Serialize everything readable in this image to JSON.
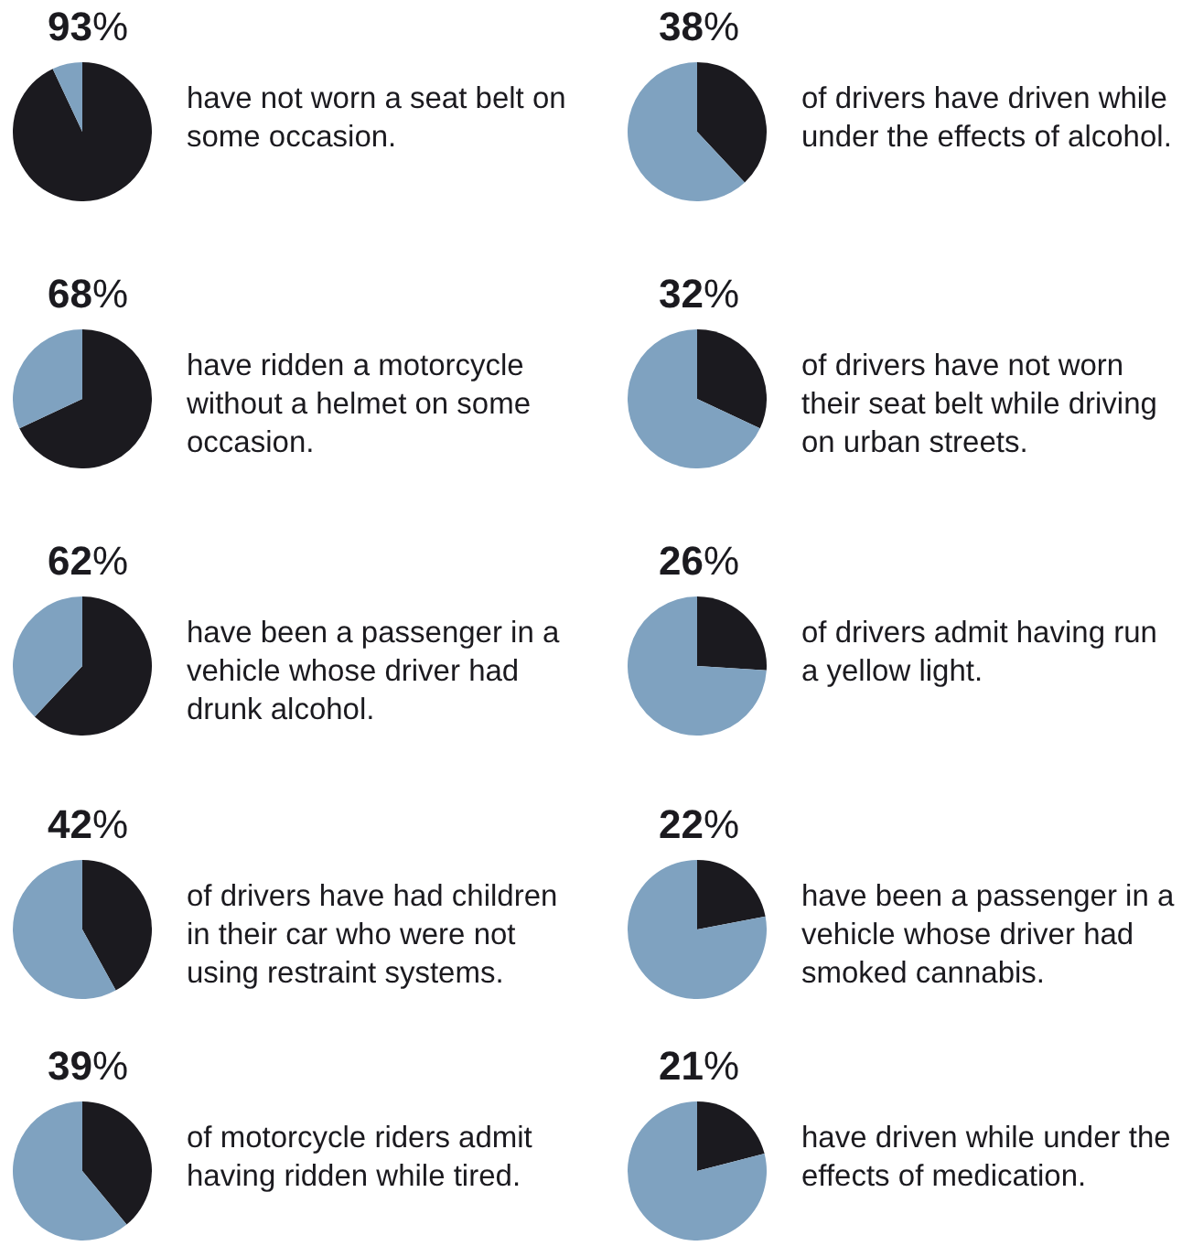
{
  "chart_data": [
    {
      "type": "pie",
      "title": "93%",
      "categories": [
        null,
        null
      ],
      "values": [
        93,
        7
      ],
      "colors": [
        "#1b1a1f",
        "#7fa2c0"
      ],
      "annotations": [
        "have not worn a seat belt on some occasion."
      ]
    },
    {
      "type": "pie",
      "title": "38%",
      "categories": [
        null,
        null
      ],
      "values": [
        38,
        62
      ],
      "colors": [
        "#1b1a1f",
        "#7fa2c0"
      ],
      "annotations": [
        "of drivers have driven while under the effects of alcohol."
      ]
    },
    {
      "type": "pie",
      "title": "68%",
      "categories": [
        null,
        null
      ],
      "values": [
        68,
        32
      ],
      "colors": [
        "#1b1a1f",
        "#7fa2c0"
      ],
      "annotations": [
        "have ridden a motorcycle without a helmet on some occasion."
      ]
    },
    {
      "type": "pie",
      "title": "32%",
      "categories": [
        null,
        null
      ],
      "values": [
        32,
        68
      ],
      "colors": [
        "#1b1a1f",
        "#7fa2c0"
      ],
      "annotations": [
        "of drivers have not worn their seat belt while driving on urban streets."
      ]
    },
    {
      "type": "pie",
      "title": "62%",
      "categories": [
        null,
        null
      ],
      "values": [
        62,
        38
      ],
      "colors": [
        "#1b1a1f",
        "#7fa2c0"
      ],
      "annotations": [
        "have been a passenger in a vehicle whose driver had drunk alcohol."
      ]
    },
    {
      "type": "pie",
      "title": "26%",
      "categories": [
        null,
        null
      ],
      "values": [
        26,
        74
      ],
      "colors": [
        "#1b1a1f",
        "#7fa2c0"
      ],
      "annotations": [
        "of drivers admit having run a yellow light."
      ]
    },
    {
      "type": "pie",
      "title": "42%",
      "categories": [
        null,
        null
      ],
      "values": [
        42,
        58
      ],
      "colors": [
        "#1b1a1f",
        "#7fa2c0"
      ],
      "annotations": [
        "of drivers have had children in their car who were not using restraint systems."
      ]
    },
    {
      "type": "pie",
      "title": "22%",
      "categories": [
        null,
        null
      ],
      "values": [
        22,
        78
      ],
      "colors": [
        "#1b1a1f",
        "#7fa2c0"
      ],
      "annotations": [
        "have been a passenger in a vehicle whose driver had smoked cannabis."
      ]
    },
    {
      "type": "pie",
      "title": "39%",
      "categories": [
        null,
        null
      ],
      "values": [
        39,
        61
      ],
      "colors": [
        "#1b1a1f",
        "#7fa2c0"
      ],
      "annotations": [
        "of motorcycle riders admit having ridden while tired."
      ]
    },
    {
      "type": "pie",
      "title": "21%",
      "categories": [
        null,
        null
      ],
      "values": [
        21,
        79
      ],
      "colors": [
        "#1b1a1f",
        "#7fa2c0"
      ],
      "annotations": [
        "have driven while under the effects of medication."
      ]
    }
  ]
}
